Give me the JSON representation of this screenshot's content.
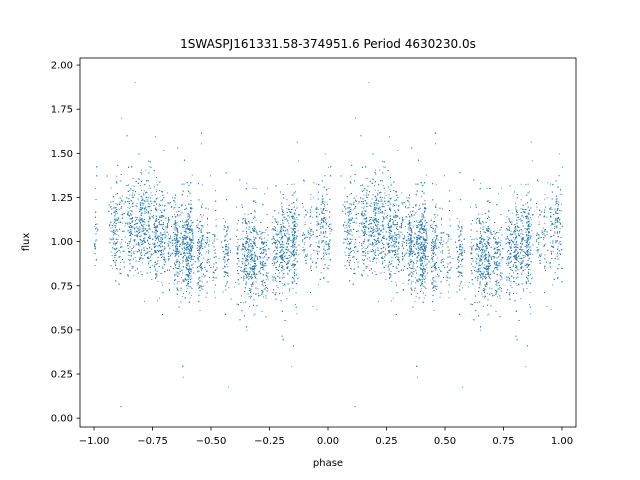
{
  "chart_data": {
    "type": "scatter",
    "title": "1SWASPJ161331.58-374951.6 Period 4630230.0s",
    "xlabel": "phase",
    "ylabel": "flux",
    "xlim": [
      -1.06,
      1.06
    ],
    "ylim": [
      -0.05,
      2.04
    ],
    "x_ticks": [
      "−1.00",
      "−0.75",
      "−0.50",
      "−0.25",
      "0.00",
      "0.25",
      "0.50",
      "0.75",
      "1.00"
    ],
    "x_tick_values": [
      -1.0,
      -0.75,
      -0.5,
      -0.25,
      0.0,
      0.25,
      0.5,
      0.75,
      1.0
    ],
    "y_ticks": [
      "0.00",
      "0.25",
      "0.50",
      "0.75",
      "1.00",
      "1.25",
      "1.50",
      "1.75",
      "2.00"
    ],
    "y_tick_values": [
      0.0,
      0.25,
      0.5,
      0.75,
      1.0,
      1.25,
      1.5,
      1.75,
      2.0
    ],
    "grid": false,
    "legend": "none",
    "marker_color": "#1f77b4",
    "series": [
      {
        "x": [
          -0.95,
          -0.9,
          -0.85,
          -0.8,
          -0.75,
          -0.7,
          -0.65,
          -0.6,
          -0.55,
          -0.5,
          -0.45,
          -0.4,
          -0.35,
          -0.3,
          -0.25,
          -0.2,
          -0.15,
          -0.1,
          -0.05,
          0.0,
          0.05,
          0.1,
          0.15,
          0.2,
          0.25,
          0.3,
          0.35,
          0.4,
          0.45,
          0.5,
          0.55,
          0.6,
          0.65,
          0.7,
          0.75,
          0.8,
          0.85,
          0.9,
          0.95
        ],
        "y": [
          1.12,
          1.08,
          1.1,
          1.1,
          1.07,
          1.02,
          0.98,
          0.96,
          0.95,
          0.95,
          0.94,
          0.93,
          0.91,
          0.9,
          0.92,
          0.95,
          1.0,
          1.04,
          1.08,
          1.05,
          1.12,
          1.08,
          1.1,
          1.1,
          1.07,
          1.02,
          0.98,
          0.96,
          0.95,
          0.95,
          0.94,
          0.93,
          0.91,
          0.9,
          0.92,
          0.95,
          1.0,
          1.04,
          1.08
        ]
      }
    ]
  }
}
